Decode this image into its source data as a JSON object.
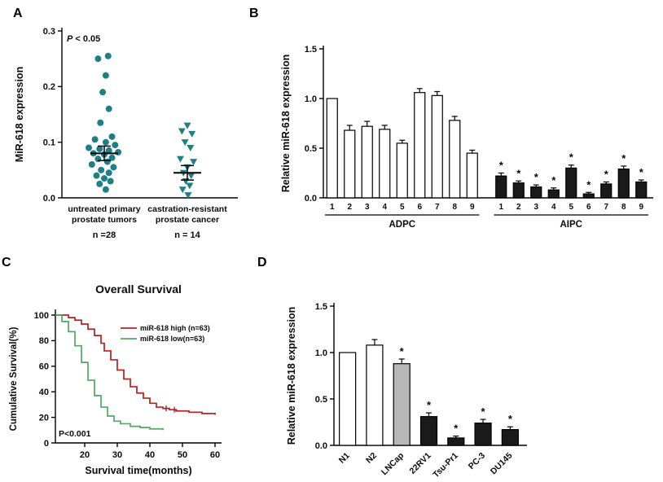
{
  "figure": {
    "background": "#ffffff",
    "panel_labels": {
      "a": "A",
      "b": "B",
      "c": "C",
      "d": "D"
    }
  },
  "chart_data": [
    {
      "panel": "A",
      "type": "scatter",
      "ylabel": "MiR-618 expression",
      "ylim": [
        0,
        0.3
      ],
      "yticks": [
        "0.0",
        "0.1",
        "0.2",
        "0.3"
      ],
      "annotation": "P < 0.05",
      "marker_color": "#1e7f87",
      "groups": [
        {
          "label_lines": [
            "untreated primary",
            "prostate tumors"
          ],
          "n_label": "n =28",
          "marker": "circle",
          "mean": 0.08,
          "err_high": 0.093,
          "err_low": 0.067,
          "points": [
            [
              0.05,
              0.255
            ],
            [
              -0.08,
              0.25
            ],
            [
              0.02,
              0.22
            ],
            [
              -0.02,
              0.19
            ],
            [
              0.06,
              0.16
            ],
            [
              -0.05,
              0.135
            ],
            [
              0.1,
              0.11
            ],
            [
              -0.12,
              0.105
            ],
            [
              0.02,
              0.1
            ],
            [
              0.14,
              0.095
            ],
            [
              -0.2,
              0.09
            ],
            [
              -0.06,
              0.088
            ],
            [
              0.06,
              0.085
            ],
            [
              0.18,
              0.082
            ],
            [
              -0.14,
              0.08
            ],
            [
              0,
              0.078
            ],
            [
              0.1,
              0.072
            ],
            [
              -0.08,
              0.07
            ],
            [
              0.04,
              0.065
            ],
            [
              -0.16,
              0.06
            ],
            [
              0.12,
              0.055
            ],
            [
              -0.04,
              0.05
            ],
            [
              0.06,
              0.045
            ],
            [
              -0.1,
              0.04
            ],
            [
              0,
              0.035
            ],
            [
              0.08,
              0.03
            ],
            [
              -0.06,
              0.025
            ],
            [
              0.02,
              0.015
            ]
          ]
        },
        {
          "label_lines": [
            "castration-resistant",
            "prostate cancer"
          ],
          "n_label": "n = 14",
          "marker": "triangle",
          "mean": 0.045,
          "err_high": 0.058,
          "err_low": 0.032,
          "points": [
            [
              0,
              0.13
            ],
            [
              -0.07,
              0.12
            ],
            [
              0.06,
              0.115
            ],
            [
              -0.03,
              0.1
            ],
            [
              0.04,
              0.09
            ],
            [
              -0.09,
              0.07
            ],
            [
              0.08,
              0.065
            ],
            [
              0,
              0.055
            ],
            [
              -0.05,
              0.045
            ],
            [
              0.05,
              0.04
            ],
            [
              -0.02,
              0.03
            ],
            [
              0.03,
              0.022
            ],
            [
              -0.06,
              0.015
            ],
            [
              0.01,
              0.005
            ]
          ]
        }
      ]
    },
    {
      "panel": "B",
      "type": "bar",
      "ylabel": "Relative miR-618 expression",
      "ylim": [
        0,
        1.5
      ],
      "yticks": [
        "0.0",
        "0.5",
        "1.0",
        "1.5"
      ],
      "categories": [
        "1",
        "2",
        "3",
        "4",
        "5",
        "6",
        "7",
        "8",
        "9",
        "1",
        "2",
        "3",
        "4",
        "5",
        "6",
        "7",
        "8",
        "9"
      ],
      "values": [
        1.0,
        0.68,
        0.72,
        0.69,
        0.55,
        1.06,
        1.03,
        0.78,
        0.45,
        0.22,
        0.15,
        0.11,
        0.08,
        0.3,
        0.04,
        0.14,
        0.29,
        0.16
      ],
      "errors": [
        0,
        0.05,
        0.05,
        0.04,
        0.03,
        0.04,
        0.04,
        0.04,
        0.03,
        0.03,
        0.02,
        0.02,
        0.02,
        0.03,
        0.015,
        0.02,
        0.03,
        0.02
      ],
      "fills": [
        "#ffffff",
        "#ffffff",
        "#ffffff",
        "#ffffff",
        "#ffffff",
        "#ffffff",
        "#ffffff",
        "#ffffff",
        "#ffffff",
        "#1a1a1a",
        "#1a1a1a",
        "#1a1a1a",
        "#1a1a1a",
        "#1a1a1a",
        "#1a1a1a",
        "#1a1a1a",
        "#1a1a1a",
        "#1a1a1a"
      ],
      "sig": [
        false,
        false,
        false,
        false,
        false,
        false,
        false,
        false,
        false,
        true,
        true,
        true,
        true,
        true,
        true,
        true,
        true,
        true
      ],
      "group_labels": [
        {
          "label": "ADPC",
          "from": 0,
          "to": 8
        },
        {
          "label": "AIPC",
          "from": 9,
          "to": 17
        }
      ]
    },
    {
      "panel": "C",
      "type": "line",
      "title": "Overall Survival",
      "xlabel": "Survival time(months)",
      "ylabel": "Cumulative Survival(%)",
      "xlim": [
        11,
        61
      ],
      "ylim": [
        0,
        100
      ],
      "xticks": [
        20,
        30,
        40,
        50,
        60
      ],
      "yticks": [
        0,
        20,
        40,
        60,
        80,
        100
      ],
      "annotation": "P<0.001",
      "legend_position": "top-right",
      "series": [
        {
          "name": "miR-618 high (n=63)",
          "color": "#b22222",
          "x": [
            11,
            15,
            17,
            19,
            21,
            23,
            25,
            26,
            28,
            30,
            32,
            34,
            36,
            38,
            40,
            42,
            44,
            46,
            48,
            52,
            56,
            60
          ],
          "y": [
            100,
            98,
            96,
            93,
            89,
            84,
            78,
            72,
            65,
            57,
            50,
            44,
            39,
            35,
            31,
            28,
            27,
            26,
            25,
            24,
            23,
            22
          ],
          "censors": [
            {
              "x": 45,
              "y": 27
            },
            {
              "x": 47.5,
              "y": 26
            }
          ]
        },
        {
          "name": "miR-618 low(n=63)",
          "color": "#53a762",
          "x": [
            11,
            13,
            15,
            17,
            19,
            21,
            23,
            25,
            27,
            29,
            31,
            34,
            37,
            40,
            44
          ],
          "y": [
            100,
            95,
            87,
            76,
            63,
            49,
            37,
            28,
            21,
            17,
            15,
            13,
            12,
            11,
            10
          ],
          "censors": []
        }
      ]
    },
    {
      "panel": "D",
      "type": "bar",
      "ylabel": "Relative miR-618 expression",
      "ylim": [
        0,
        1.5
      ],
      "yticks": [
        "0.0",
        "0.5",
        "1.0",
        "1.5"
      ],
      "categories": [
        "N1",
        "N2",
        "LNCap",
        "22RV1",
        "Tsu-Pr1",
        "PC-3",
        "DU145"
      ],
      "values": [
        1.0,
        1.08,
        0.88,
        0.31,
        0.08,
        0.24,
        0.17
      ],
      "errors": [
        0,
        0.06,
        0.05,
        0.04,
        0.02,
        0.04,
        0.03
      ],
      "fills": [
        "#ffffff",
        "#ffffff",
        "#b8b8b8",
        "#1a1a1a",
        "#1a1a1a",
        "#1a1a1a",
        "#1a1a1a"
      ],
      "sig": [
        false,
        false,
        true,
        true,
        true,
        true,
        true
      ]
    }
  ]
}
